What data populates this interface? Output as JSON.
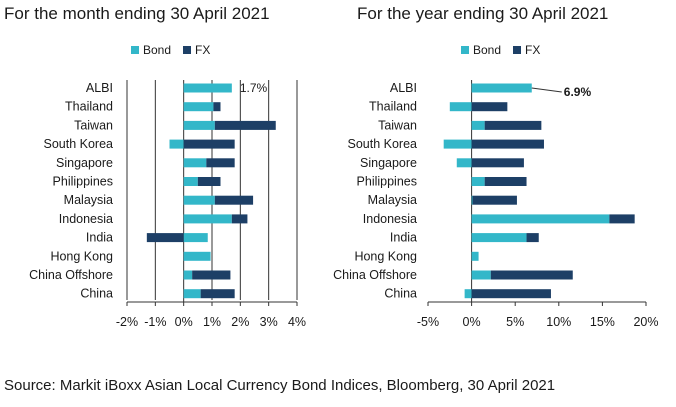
{
  "colors": {
    "bond": "#33b7c9",
    "fx": "#1d3f66",
    "grid": "#333333",
    "text": "#1a1a1a"
  },
  "source": "Source: Markit iBoxx Asian Local Currency Bond Indices, Bloomberg, 30 April 2021",
  "chart_data": [
    {
      "type": "bar",
      "orientation": "horizontal",
      "stacked": true,
      "title": "For the month ending 30 April 2021",
      "unit": "%",
      "legend": [
        "Bond",
        "FX"
      ],
      "legend_position": "top",
      "grid": true,
      "xlim": [
        -2,
        4
      ],
      "xticks": [
        -2,
        -1,
        0,
        1,
        2,
        3,
        4
      ],
      "xtick_labels": [
        "-2%",
        "-1%",
        "0%",
        "1%",
        "2%",
        "3%",
        "4%"
      ],
      "categories": [
        "ALBI",
        "Thailand",
        "Taiwan",
        "South Korea",
        "Singapore",
        "Philippines",
        "Malaysia",
        "Indonesia",
        "India",
        "Hong Kong",
        "China Offshore",
        "China"
      ],
      "series": [
        {
          "name": "Bond",
          "values": [
            1.7,
            1.05,
            1.1,
            -0.5,
            0.8,
            0.5,
            1.1,
            1.7,
            0.85,
            0.95,
            0.3,
            0.6
          ]
        },
        {
          "name": "FX",
          "values": [
            0.0,
            0.25,
            2.15,
            1.8,
            1.0,
            0.8,
            1.35,
            0.55,
            -1.3,
            0.0,
            1.35,
            1.2
          ]
        }
      ],
      "annotations": [
        {
          "category": "ALBI",
          "text": "1.7%"
        }
      ]
    },
    {
      "type": "bar",
      "orientation": "horizontal",
      "stacked": true,
      "title": "For the year ending 30 April 2021",
      "unit": "%",
      "legend": [
        "Bond",
        "FX"
      ],
      "legend_position": "top",
      "grid": false,
      "xlim": [
        -5,
        20
      ],
      "xticks": [
        -5,
        0,
        5,
        10,
        15,
        20
      ],
      "xtick_labels": [
        "-5%",
        "0%",
        "5%",
        "10%",
        "15%",
        "20%"
      ],
      "categories": [
        "ALBI",
        "Thailand",
        "Taiwan",
        "South Korea",
        "Singapore",
        "Philippines",
        "Malaysia",
        "Indonesia",
        "India",
        "Hong Kong",
        "China Offshore",
        "China"
      ],
      "series": [
        {
          "name": "Bond",
          "values": [
            6.9,
            -2.5,
            1.5,
            -3.2,
            -1.7,
            1.5,
            0.1,
            15.8,
            6.3,
            0.8,
            2.2,
            -0.8
          ]
        },
        {
          "name": "FX",
          "values": [
            0.0,
            4.1,
            6.5,
            8.3,
            6.0,
            4.8,
            5.1,
            2.9,
            1.4,
            0.0,
            9.4,
            9.1
          ]
        }
      ],
      "annotations": [
        {
          "category": "ALBI",
          "text": "6.9%"
        }
      ]
    }
  ]
}
